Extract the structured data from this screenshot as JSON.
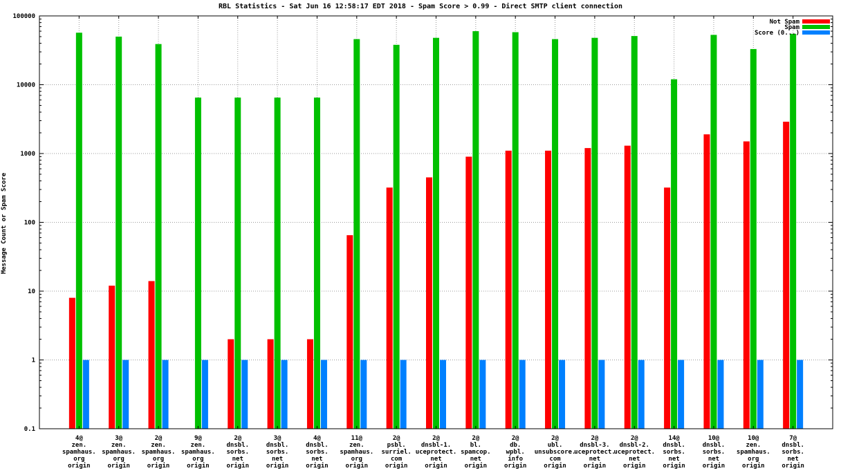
{
  "chart": {
    "title": "RBL Statistics - Sat Jun 16 12:58:17 EDT 2018 - Spam Score > 0.99 - Direct SMTP client connection",
    "ylabel": "Message Count or Spam Score"
  },
  "chart_data": {
    "type": "bar",
    "title": "RBL Statistics - Sat Jun 16 12:58:17 EDT 2018 - Spam Score > 0.99 - Direct SMTP client connection",
    "ylabel": "Message Count or Spam Score",
    "yscale": "log",
    "ylim": [
      0.1,
      100000
    ],
    "ytick_values": [
      0.1,
      1,
      10,
      100,
      1000,
      10000,
      100000
    ],
    "ytick_labels": [
      "0.1",
      "1",
      "10",
      "100",
      "1000",
      "10000",
      "100000"
    ],
    "grid": true,
    "legend_position": "top-right",
    "categories": [
      [
        "4@",
        "zen.",
        "spamhaus.",
        "org",
        "origin"
      ],
      [
        "3@",
        "zen.",
        "spamhaus.",
        "org",
        "origin"
      ],
      [
        "2@",
        "zen.",
        "spamhaus.",
        "org",
        "origin"
      ],
      [
        "9@",
        "zen.",
        "spamhaus.",
        "org",
        "origin"
      ],
      [
        "2@",
        "dnsbl.",
        "sorbs.",
        "net",
        "origin"
      ],
      [
        "3@",
        "dnsbl.",
        "sorbs.",
        "net",
        "origin"
      ],
      [
        "4@",
        "dnsbl.",
        "sorbs.",
        "net",
        "origin"
      ],
      [
        "11@",
        "zen.",
        "spamhaus.",
        "org",
        "origin"
      ],
      [
        "2@",
        "psbl.",
        "surriel.",
        "com",
        "origin"
      ],
      [
        "2@",
        "dnsbl-1.",
        "uceprotect.",
        "net",
        "origin"
      ],
      [
        "2@",
        "bl.",
        "spamcop.",
        "net",
        "origin"
      ],
      [
        "2@",
        "db.",
        "wpbl.",
        "info",
        "origin"
      ],
      [
        "2@",
        "ubl.",
        "unsubscore.",
        "com",
        "origin"
      ],
      [
        "2@",
        "dnsbl-3.",
        "uceprotect.",
        "net",
        "origin"
      ],
      [
        "2@",
        "dnsbl-2.",
        "uceprotect.",
        "net",
        "origin"
      ],
      [
        "14@",
        "dnsbl.",
        "sorbs.",
        "net",
        "origin"
      ],
      [
        "10@",
        "dnsbl.",
        "sorbs.",
        "net",
        "origin"
      ],
      [
        "10@",
        "zen.",
        "spamhaus.",
        "org",
        "origin"
      ],
      [
        "7@",
        "dnsbl.",
        "sorbs.",
        "net",
        "origin"
      ]
    ],
    "series": [
      {
        "name": "Not Spam",
        "color": "#ff0000",
        "values": [
          8,
          12,
          14,
          0,
          2,
          2,
          2,
          65,
          320,
          450,
          900,
          1100,
          1100,
          1200,
          1300,
          320,
          1900,
          1500,
          2900
        ]
      },
      {
        "name": "Spam",
        "color": "#00c000",
        "values": [
          57000,
          50000,
          39000,
          6500,
          6500,
          6500,
          6500,
          46000,
          38000,
          48000,
          60000,
          58000,
          46000,
          48000,
          51000,
          12000,
          53000,
          33000,
          55000
        ]
      },
      {
        "name": "Score (0...)",
        "color": "#0080ff",
        "values": [
          1,
          1,
          1,
          1,
          1,
          1,
          1,
          1,
          1,
          1,
          1,
          1,
          1,
          1,
          1,
          1,
          1,
          1,
          1
        ]
      }
    ]
  }
}
